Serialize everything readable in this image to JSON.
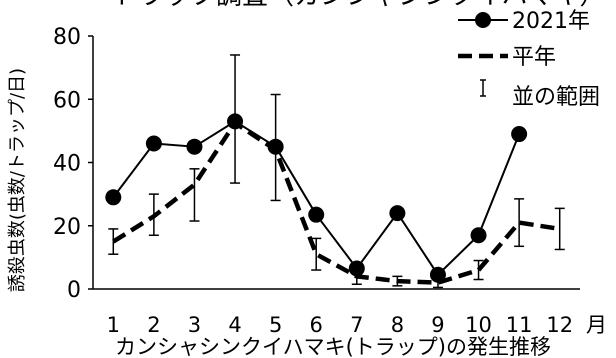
{
  "chart_data": {
    "type": "line",
    "title": "トラップ調査（カンシャシンクイハマキ）",
    "xlabel": "カンシャシンクイハマキ(トラップ)の発生推移",
    "ylabel": "誘殺虫数(虫数/トラップ/日)",
    "x_unit": "月",
    "categories": [
      "1",
      "2",
      "3",
      "4",
      "5",
      "6",
      "7",
      "8",
      "9",
      "10",
      "11",
      "12"
    ],
    "ylim": [
      0,
      80
    ],
    "yticks": [
      0,
      20,
      40,
      60,
      80
    ],
    "grid": false,
    "legend_position": "top-right",
    "series": [
      {
        "name": "2021年",
        "style": "solid-markers",
        "color": "#000000",
        "values": [
          29,
          46,
          45,
          53,
          45,
          23.5,
          6.5,
          24,
          4.5,
          17,
          49,
          null
        ]
      },
      {
        "name": "平年",
        "style": "dashed",
        "color": "#000000",
        "values": [
          15,
          23,
          33,
          52.5,
          44,
          11,
          4,
          2.5,
          2,
          6,
          21,
          19
        ]
      }
    ],
    "range": {
      "name": "並の範囲",
      "low": [
        11,
        17,
        21.5,
        33.5,
        28,
        6,
        1.5,
        1,
        0.5,
        3,
        13.5,
        12.5
      ],
      "high": [
        19,
        30,
        38,
        74,
        61.5,
        16,
        6.5,
        4,
        3.5,
        9,
        28.5,
        25.5
      ]
    }
  }
}
